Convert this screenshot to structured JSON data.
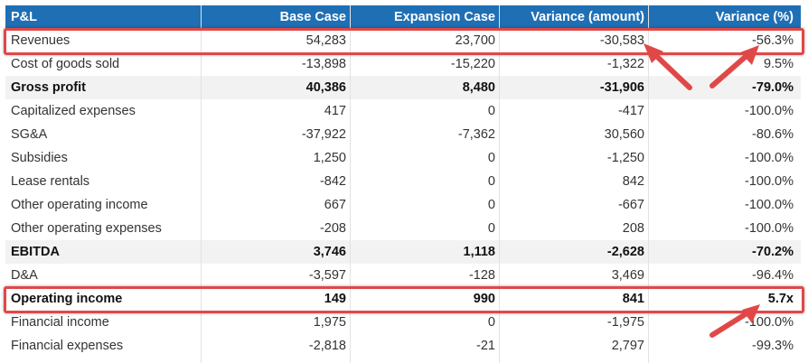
{
  "columns": [
    "P&L",
    "Base Case",
    "Expansion Case",
    "Variance (amount)",
    "Variance (%)"
  ],
  "rows": [
    {
      "label": "Revenues",
      "base": "54,283",
      "expansion": "23,700",
      "var_amount": "-30,583",
      "var_pct": "-56.3%",
      "bold": false,
      "shaded": false
    },
    {
      "label": "Cost of goods sold",
      "base": "-13,898",
      "expansion": "-15,220",
      "var_amount": "-1,322",
      "var_pct": "9.5%",
      "bold": false,
      "shaded": false
    },
    {
      "label": "Gross profit",
      "base": "40,386",
      "expansion": "8,480",
      "var_amount": "-31,906",
      "var_pct": "-79.0%",
      "bold": true,
      "shaded": true
    },
    {
      "label": "Capitalized expenses",
      "base": "417",
      "expansion": "0",
      "var_amount": "-417",
      "var_pct": "-100.0%",
      "bold": false,
      "shaded": false
    },
    {
      "label": "SG&A",
      "base": "-37,922",
      "expansion": "-7,362",
      "var_amount": "30,560",
      "var_pct": "-80.6%",
      "bold": false,
      "shaded": false
    },
    {
      "label": "Subsidies",
      "base": "1,250",
      "expansion": "0",
      "var_amount": "-1,250",
      "var_pct": "-100.0%",
      "bold": false,
      "shaded": false
    },
    {
      "label": "Lease rentals",
      "base": "-842",
      "expansion": "0",
      "var_amount": "842",
      "var_pct": "-100.0%",
      "bold": false,
      "shaded": false
    },
    {
      "label": "Other operating income",
      "base": "667",
      "expansion": "0",
      "var_amount": "-667",
      "var_pct": "-100.0%",
      "bold": false,
      "shaded": false
    },
    {
      "label": "Other operating expenses",
      "base": "-208",
      "expansion": "0",
      "var_amount": "208",
      "var_pct": "-100.0%",
      "bold": false,
      "shaded": false
    },
    {
      "label": "EBITDA",
      "base": "3,746",
      "expansion": "1,118",
      "var_amount": "-2,628",
      "var_pct": "-70.2%",
      "bold": true,
      "shaded": true
    },
    {
      "label": "D&A",
      "base": "-3,597",
      "expansion": "-128",
      "var_amount": "3,469",
      "var_pct": "-96.4%",
      "bold": false,
      "shaded": false
    },
    {
      "label": "Operating income",
      "base": "149",
      "expansion": "990",
      "var_amount": "841",
      "var_pct": "5.7x",
      "bold": true,
      "shaded": false
    },
    {
      "label": "Financial income",
      "base": "1,975",
      "expansion": "0",
      "var_amount": "-1,975",
      "var_pct": "-100.0%",
      "bold": false,
      "shaded": false
    },
    {
      "label": "Financial expenses",
      "base": "-2,818",
      "expansion": "-21",
      "var_amount": "2,797",
      "var_pct": "-99.3%",
      "bold": false,
      "shaded": false
    }
  ],
  "colors": {
    "header_bg": "#1f6fb5",
    "header_text": "#ffffff",
    "shaded_row": "#f2f2f2",
    "callout": "#e04848"
  },
  "annotations": {
    "highlighted_rows": [
      "Revenues",
      "Operating income"
    ],
    "arrow_icons": [
      "arrow-to-revenue-variance-icon",
      "arrow-to-revenue-pct-icon",
      "arrow-to-operating-pct-icon"
    ]
  }
}
